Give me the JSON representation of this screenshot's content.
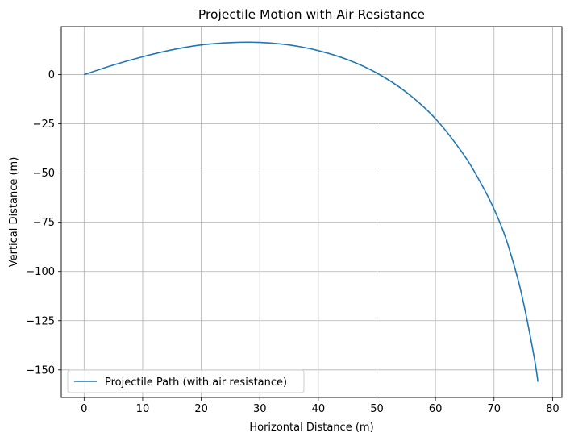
{
  "chart_data": {
    "type": "line",
    "title": "Projectile Motion with Air Resistance",
    "xlabel": "Horizontal Distance (m)",
    "ylabel": "Vertical Distance (m)",
    "xlim": [
      -3.9,
      81.6
    ],
    "ylim": [
      -164.0,
      24.4
    ],
    "xticks": [
      0,
      10,
      20,
      30,
      40,
      50,
      60,
      70,
      80
    ],
    "yticks": [
      0,
      -25,
      -50,
      -75,
      -100,
      -125,
      -150
    ],
    "xtick_labels": [
      "0",
      "10",
      "20",
      "30",
      "40",
      "50",
      "60",
      "70",
      "80"
    ],
    "ytick_labels": [
      "0",
      "−25",
      "−50",
      "−75",
      "−100",
      "−125",
      "−150"
    ],
    "grid": true,
    "legend": {
      "location": "lower-left"
    },
    "series": [
      {
        "name": "Projectile Path (with air resistance)",
        "color": "#1f77b4",
        "x": [
          0,
          5,
          10,
          15,
          20,
          25,
          30,
          35,
          40,
          45,
          50,
          55,
          60,
          65,
          68,
          70,
          72,
          74,
          75,
          76,
          77,
          77.5
        ],
        "y": [
          0,
          4.9,
          9.1,
          12.6,
          15.1,
          16.3,
          16.4,
          15.1,
          12.2,
          7.6,
          0.8,
          -8.9,
          -22.4,
          -41.4,
          -56.5,
          -68.3,
          -83,
          -103,
          -115.5,
          -130,
          -146,
          -156
        ]
      }
    ]
  }
}
